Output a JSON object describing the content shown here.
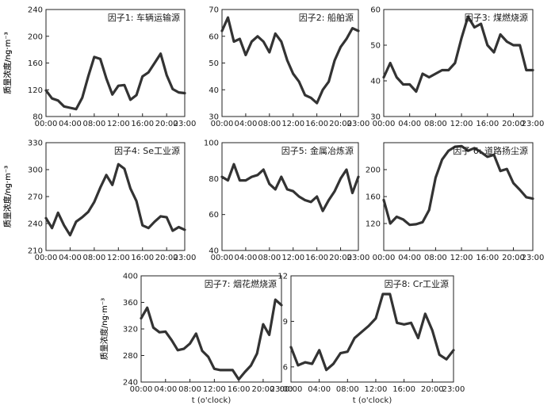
{
  "figure": {
    "ylabel": "质量浓度/ng·m⁻³",
    "xlabel": "t (o'clock)",
    "x_ticks": [
      "00:00",
      "04:00",
      "08:00",
      "12:00",
      "16:00",
      "20:00",
      "23:00"
    ],
    "line_color": "#333333"
  },
  "chart_data": [
    {
      "type": "line",
      "title": "因子1: 车辆运输源",
      "x": [
        0,
        1,
        2,
        3,
        4,
        5,
        6,
        7,
        8,
        9,
        10,
        11,
        12,
        13,
        14,
        15,
        16,
        17,
        18,
        19,
        20,
        21,
        22,
        23
      ],
      "values": [
        119,
        107,
        104,
        95,
        93,
        91,
        108,
        140,
        169,
        166,
        137,
        113,
        126,
        127,
        105,
        112,
        140,
        146,
        160,
        174,
        142,
        121,
        116,
        115
      ],
      "ylim": [
        80,
        240
      ],
      "yticks": [
        80,
        120,
        160,
        200,
        240
      ]
    },
    {
      "type": "line",
      "title": "因子2: 船舶源",
      "x": [
        0,
        1,
        2,
        3,
        4,
        5,
        6,
        7,
        8,
        9,
        10,
        11,
        12,
        13,
        14,
        15,
        16,
        17,
        18,
        19,
        20,
        21,
        22,
        23
      ],
      "values": [
        62,
        67,
        58,
        59,
        53,
        58,
        60,
        58,
        54,
        61,
        58,
        51,
        46,
        43,
        38,
        37,
        35,
        40,
        43,
        51,
        56,
        59,
        63,
        62
      ],
      "ylim": [
        30,
        70
      ],
      "yticks": [
        30,
        40,
        50,
        60,
        70
      ]
    },
    {
      "type": "line",
      "title": "因子3: 煤燃烧源",
      "x": [
        0,
        1,
        2,
        3,
        4,
        5,
        6,
        7,
        8,
        9,
        10,
        11,
        12,
        13,
        14,
        15,
        16,
        17,
        18,
        19,
        20,
        21,
        22,
        23
      ],
      "values": [
        41,
        45,
        41,
        39,
        39,
        37,
        42,
        41,
        42,
        43,
        43,
        45,
        52,
        58,
        55,
        56,
        50,
        48,
        53,
        51,
        50,
        50,
        43,
        43
      ],
      "ylim": [
        30,
        60
      ],
      "yticks": [
        30,
        40,
        50,
        60
      ]
    },
    {
      "type": "line",
      "title": "因子4: Se工业源",
      "x": [
        0,
        1,
        2,
        3,
        4,
        5,
        6,
        7,
        8,
        9,
        10,
        11,
        12,
        13,
        14,
        15,
        16,
        17,
        18,
        19,
        20,
        21,
        22,
        23
      ],
      "values": [
        246,
        235,
        252,
        238,
        227,
        242,
        247,
        253,
        264,
        280,
        294,
        283,
        306,
        301,
        279,
        265,
        238,
        235,
        242,
        248,
        247,
        232,
        236,
        233
      ],
      "ylim": [
        210,
        330
      ],
      "yticks": [
        210,
        240,
        270,
        300,
        330
      ]
    },
    {
      "type": "line",
      "title": "因子5: 金属冶炼源",
      "x": [
        0,
        1,
        2,
        3,
        4,
        5,
        6,
        7,
        8,
        9,
        10,
        11,
        12,
        13,
        14,
        15,
        16,
        17,
        18,
        19,
        20,
        21,
        22,
        23
      ],
      "values": [
        81,
        79,
        88,
        79,
        79,
        81,
        82,
        85,
        77,
        74,
        81,
        74,
        73,
        70,
        68,
        67,
        70,
        62,
        68,
        73,
        80,
        85,
        72,
        81
      ],
      "ylim": [
        40,
        100
      ],
      "yticks": [
        40,
        60,
        80,
        100
      ]
    },
    {
      "type": "line",
      "title": "因子 6: 道路扬尘源",
      "x": [
        0,
        1,
        2,
        3,
        4,
        5,
        6,
        7,
        8,
        9,
        10,
        11,
        12,
        13,
        14,
        15,
        16,
        17,
        18,
        19,
        20,
        21,
        22,
        23
      ],
      "values": [
        155,
        120,
        130,
        126,
        118,
        119,
        122,
        140,
        188,
        215,
        228,
        234,
        235,
        228,
        232,
        226,
        219,
        222,
        198,
        201,
        180,
        170,
        159,
        157
      ],
      "ylim": [
        80,
        240
      ],
      "yticks": [
        120,
        160,
        200
      ]
    },
    {
      "type": "line",
      "title": "因子7: 烟花燃烧源",
      "x": [
        0,
        1,
        2,
        3,
        4,
        5,
        6,
        7,
        8,
        9,
        10,
        11,
        12,
        13,
        14,
        15,
        16,
        17,
        18,
        19,
        20,
        21,
        22,
        23
      ],
      "values": [
        336,
        352,
        322,
        315,
        316,
        303,
        288,
        290,
        298,
        313,
        287,
        278,
        260,
        258,
        258,
        258,
        244,
        255,
        265,
        283,
        327,
        311,
        364,
        356
      ],
      "ylim": [
        240,
        400
      ],
      "yticks": [
        240,
        280,
        320,
        360,
        400
      ]
    },
    {
      "type": "line",
      "title": "因子8: Cr工业源",
      "x": [
        0,
        1,
        2,
        3,
        4,
        5,
        6,
        7,
        8,
        9,
        10,
        11,
        12,
        13,
        14,
        15,
        16,
        17,
        18,
        19,
        20,
        21,
        22,
        23
      ],
      "values": [
        7.3,
        6.1,
        6.3,
        6.2,
        7.1,
        5.8,
        6.2,
        6.9,
        7.0,
        7.9,
        8.3,
        8.7,
        9.2,
        10.8,
        10.8,
        8.9,
        8.8,
        8.9,
        7.9,
        9.5,
        8.4,
        6.8,
        6.5,
        7.1
      ],
      "ylim": [
        5,
        12
      ],
      "yticks": [
        6,
        9,
        12
      ]
    }
  ]
}
